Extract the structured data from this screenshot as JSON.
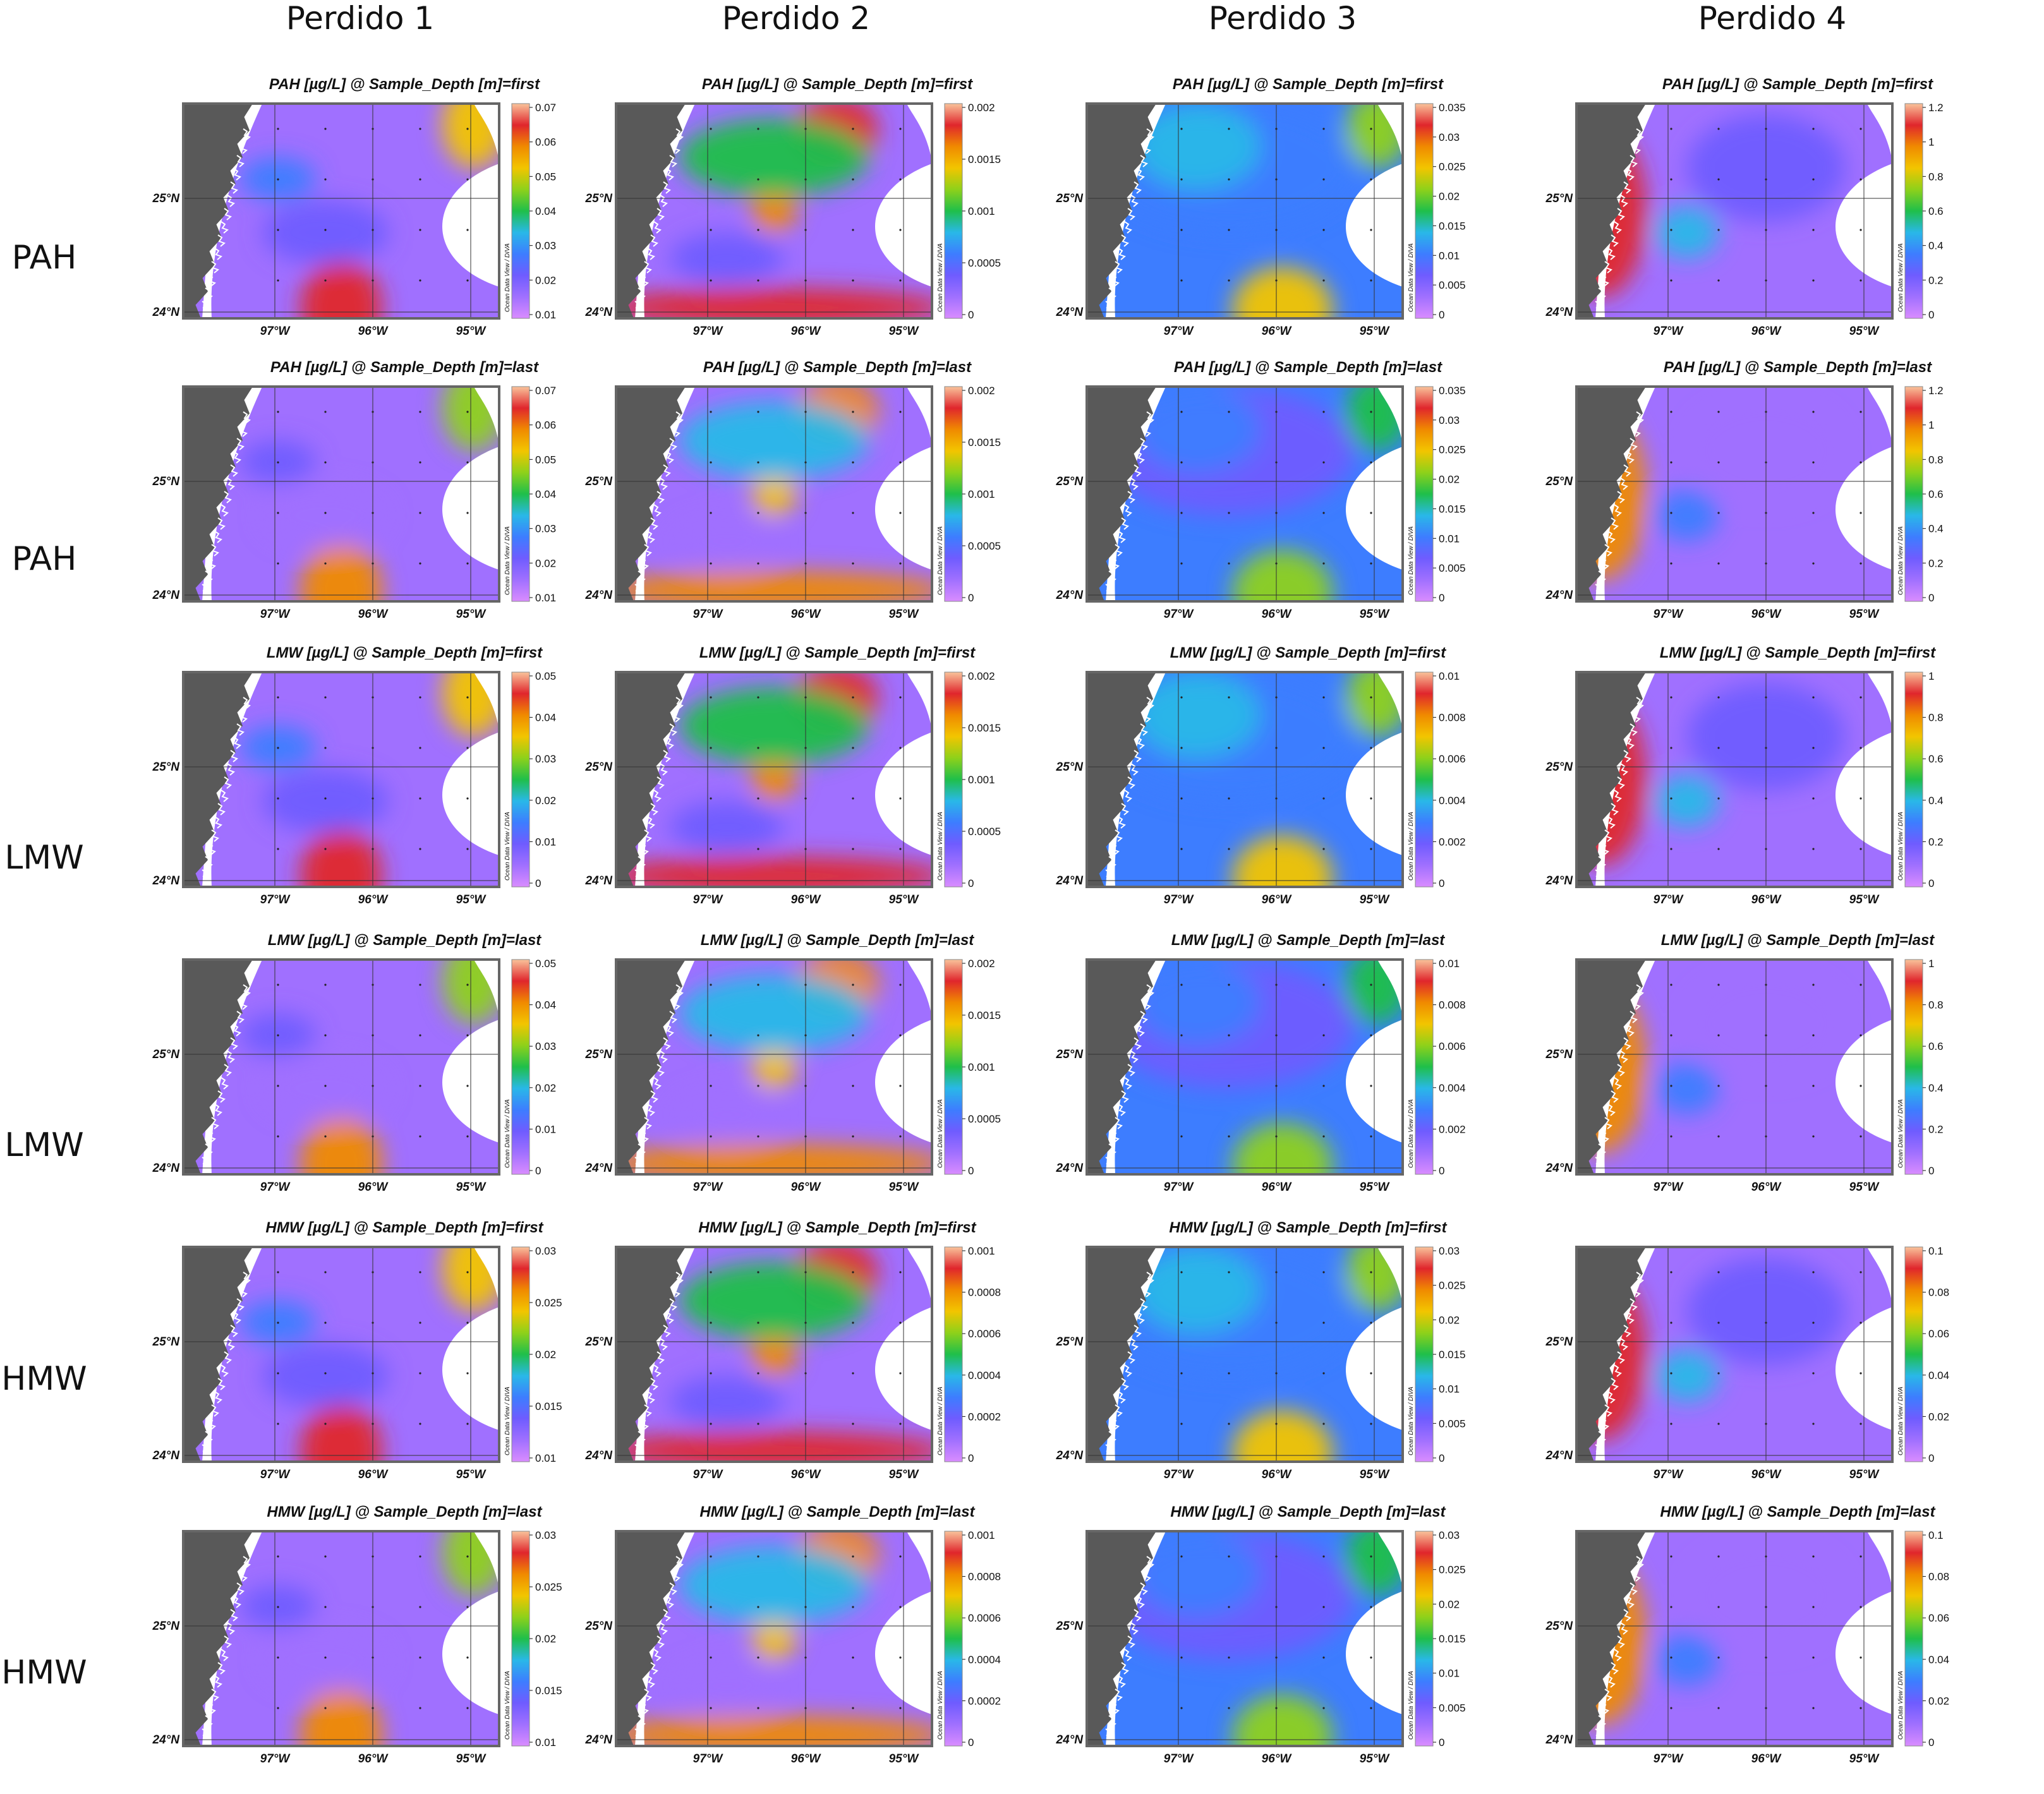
{
  "columns": [
    "Perdido 1",
    "Perdido 2",
    "Perdido 3",
    "Perdido 4"
  ],
  "rows": [
    "PAH",
    "PAH",
    "LMW",
    "LMW",
    "HMW",
    "HMW"
  ],
  "axes": {
    "lat_labels": [
      "25°N",
      "24°N"
    ],
    "lon_labels": [
      "97°W",
      "96°W",
      "95°W"
    ]
  },
  "colorbar_side_label": "Ocean Data View / DIVA",
  "colors": {
    "land": "#595959",
    "palette": [
      "#d98cff",
      "#a070ff",
      "#6f5cff",
      "#3d7dff",
      "#29b8e8",
      "#1fbf4a",
      "#8ed11a",
      "#f2c500",
      "#f08a00",
      "#e0262c",
      "#f9c39a"
    ]
  },
  "panels": [
    {
      "title": "PAH [µg/L] @ Sample_Depth [m]=first",
      "cbar": [
        "0.07",
        "0.06",
        "0.05",
        "0.04",
        "0.03",
        "0.02",
        "0.01"
      ]
    },
    {
      "title": "PAH [µg/L] @ Sample_Depth [m]=first",
      "cbar": [
        "0.002",
        "0.0015",
        "0.001",
        "0.0005",
        "0"
      ]
    },
    {
      "title": "PAH [µg/L] @ Sample_Depth [m]=first",
      "cbar": [
        "0.035",
        "0.03",
        "0.025",
        "0.02",
        "0.015",
        "0.01",
        "0.005",
        "0"
      ]
    },
    {
      "title": "PAH [µg/L] @ Sample_Depth [m]=first",
      "cbar": [
        "1.2",
        "1",
        "0.8",
        "0.6",
        "0.4",
        "0.2",
        "0"
      ]
    },
    {
      "title": "PAH [µg/L] @ Sample_Depth [m]=last",
      "cbar": [
        "0.07",
        "0.06",
        "0.05",
        "0.04",
        "0.03",
        "0.02",
        "0.01"
      ]
    },
    {
      "title": "PAH [µg/L] @ Sample_Depth [m]=last",
      "cbar": [
        "0.002",
        "0.0015",
        "0.001",
        "0.0005",
        "0"
      ]
    },
    {
      "title": "PAH [µg/L] @ Sample_Depth [m]=last",
      "cbar": [
        "0.035",
        "0.03",
        "0.025",
        "0.02",
        "0.015",
        "0.01",
        "0.005",
        "0"
      ]
    },
    {
      "title": "PAH [µg/L] @ Sample_Depth [m]=last",
      "cbar": [
        "1.2",
        "1",
        "0.8",
        "0.6",
        "0.4",
        "0.2",
        "0"
      ]
    },
    {
      "title": "LMW [µg/L] @ Sample_Depth [m]=first",
      "cbar": [
        "0.05",
        "0.04",
        "0.03",
        "0.02",
        "0.01",
        "0"
      ]
    },
    {
      "title": "LMW [µg/L] @ Sample_Depth [m]=first",
      "cbar": [
        "0.002",
        "0.0015",
        "0.001",
        "0.0005",
        "0"
      ]
    },
    {
      "title": "LMW [µg/L] @ Sample_Depth [m]=first",
      "cbar": [
        "0.01",
        "0.008",
        "0.006",
        "0.004",
        "0.002",
        "0"
      ]
    },
    {
      "title": "LMW [µg/L] @ Sample_Depth [m]=first",
      "cbar": [
        "1",
        "0.8",
        "0.6",
        "0.4",
        "0.2",
        "0"
      ]
    },
    {
      "title": "LMW [µg/L] @ Sample_Depth [m]=last",
      "cbar": [
        "0.05",
        "0.04",
        "0.03",
        "0.02",
        "0.01",
        "0"
      ]
    },
    {
      "title": "LMW [µg/L] @ Sample_Depth [m]=last",
      "cbar": [
        "0.002",
        "0.0015",
        "0.001",
        "0.0005",
        "0"
      ]
    },
    {
      "title": "LMW [µg/L] @ Sample_Depth [m]=last",
      "cbar": [
        "0.01",
        "0.008",
        "0.006",
        "0.004",
        "0.002",
        "0"
      ]
    },
    {
      "title": "LMW [µg/L] @ Sample_Depth [m]=last",
      "cbar": [
        "1",
        "0.8",
        "0.6",
        "0.4",
        "0.2",
        "0"
      ]
    },
    {
      "title": "HMW [µg/L] @ Sample_Depth [m]=first",
      "cbar": [
        "0.03",
        "0.025",
        "0.02",
        "0.015",
        "0.01"
      ]
    },
    {
      "title": "HMW [µg/L] @ Sample_Depth [m]=first",
      "cbar": [
        "0.001",
        "0.0008",
        "0.0006",
        "0.0004",
        "0.0002",
        "0"
      ]
    },
    {
      "title": "HMW [µg/L] @ Sample_Depth [m]=first",
      "cbar": [
        "0.03",
        "0.025",
        "0.02",
        "0.015",
        "0.01",
        "0.005",
        "0"
      ]
    },
    {
      "title": "",
      "cbar": [
        "0.1",
        "0.08",
        "0.06",
        "0.04",
        "0.02",
        "0"
      ]
    },
    {
      "title": "HMW [µg/L] @ Sample_Depth [m]=last",
      "cbar": [
        "0.03",
        "0.025",
        "0.02",
        "0.015",
        "0.01"
      ]
    },
    {
      "title": "HMW [µg/L] @ Sample_Depth [m]=last",
      "cbar": [
        "0.001",
        "0.0008",
        "0.0006",
        "0.0004",
        "0.0002",
        "0"
      ]
    },
    {
      "title": "HMW [µg/L] @ Sample_Depth [m]=last",
      "cbar": [
        "0.03",
        "0.025",
        "0.02",
        "0.015",
        "0.01",
        "0.005",
        "0"
      ]
    },
    {
      "title": "HMW [µg/L] @ Sample_Depth [m]=last",
      "cbar": [
        "0.1",
        "0.08",
        "0.06",
        "0.04",
        "0.02",
        "0"
      ]
    }
  ]
}
